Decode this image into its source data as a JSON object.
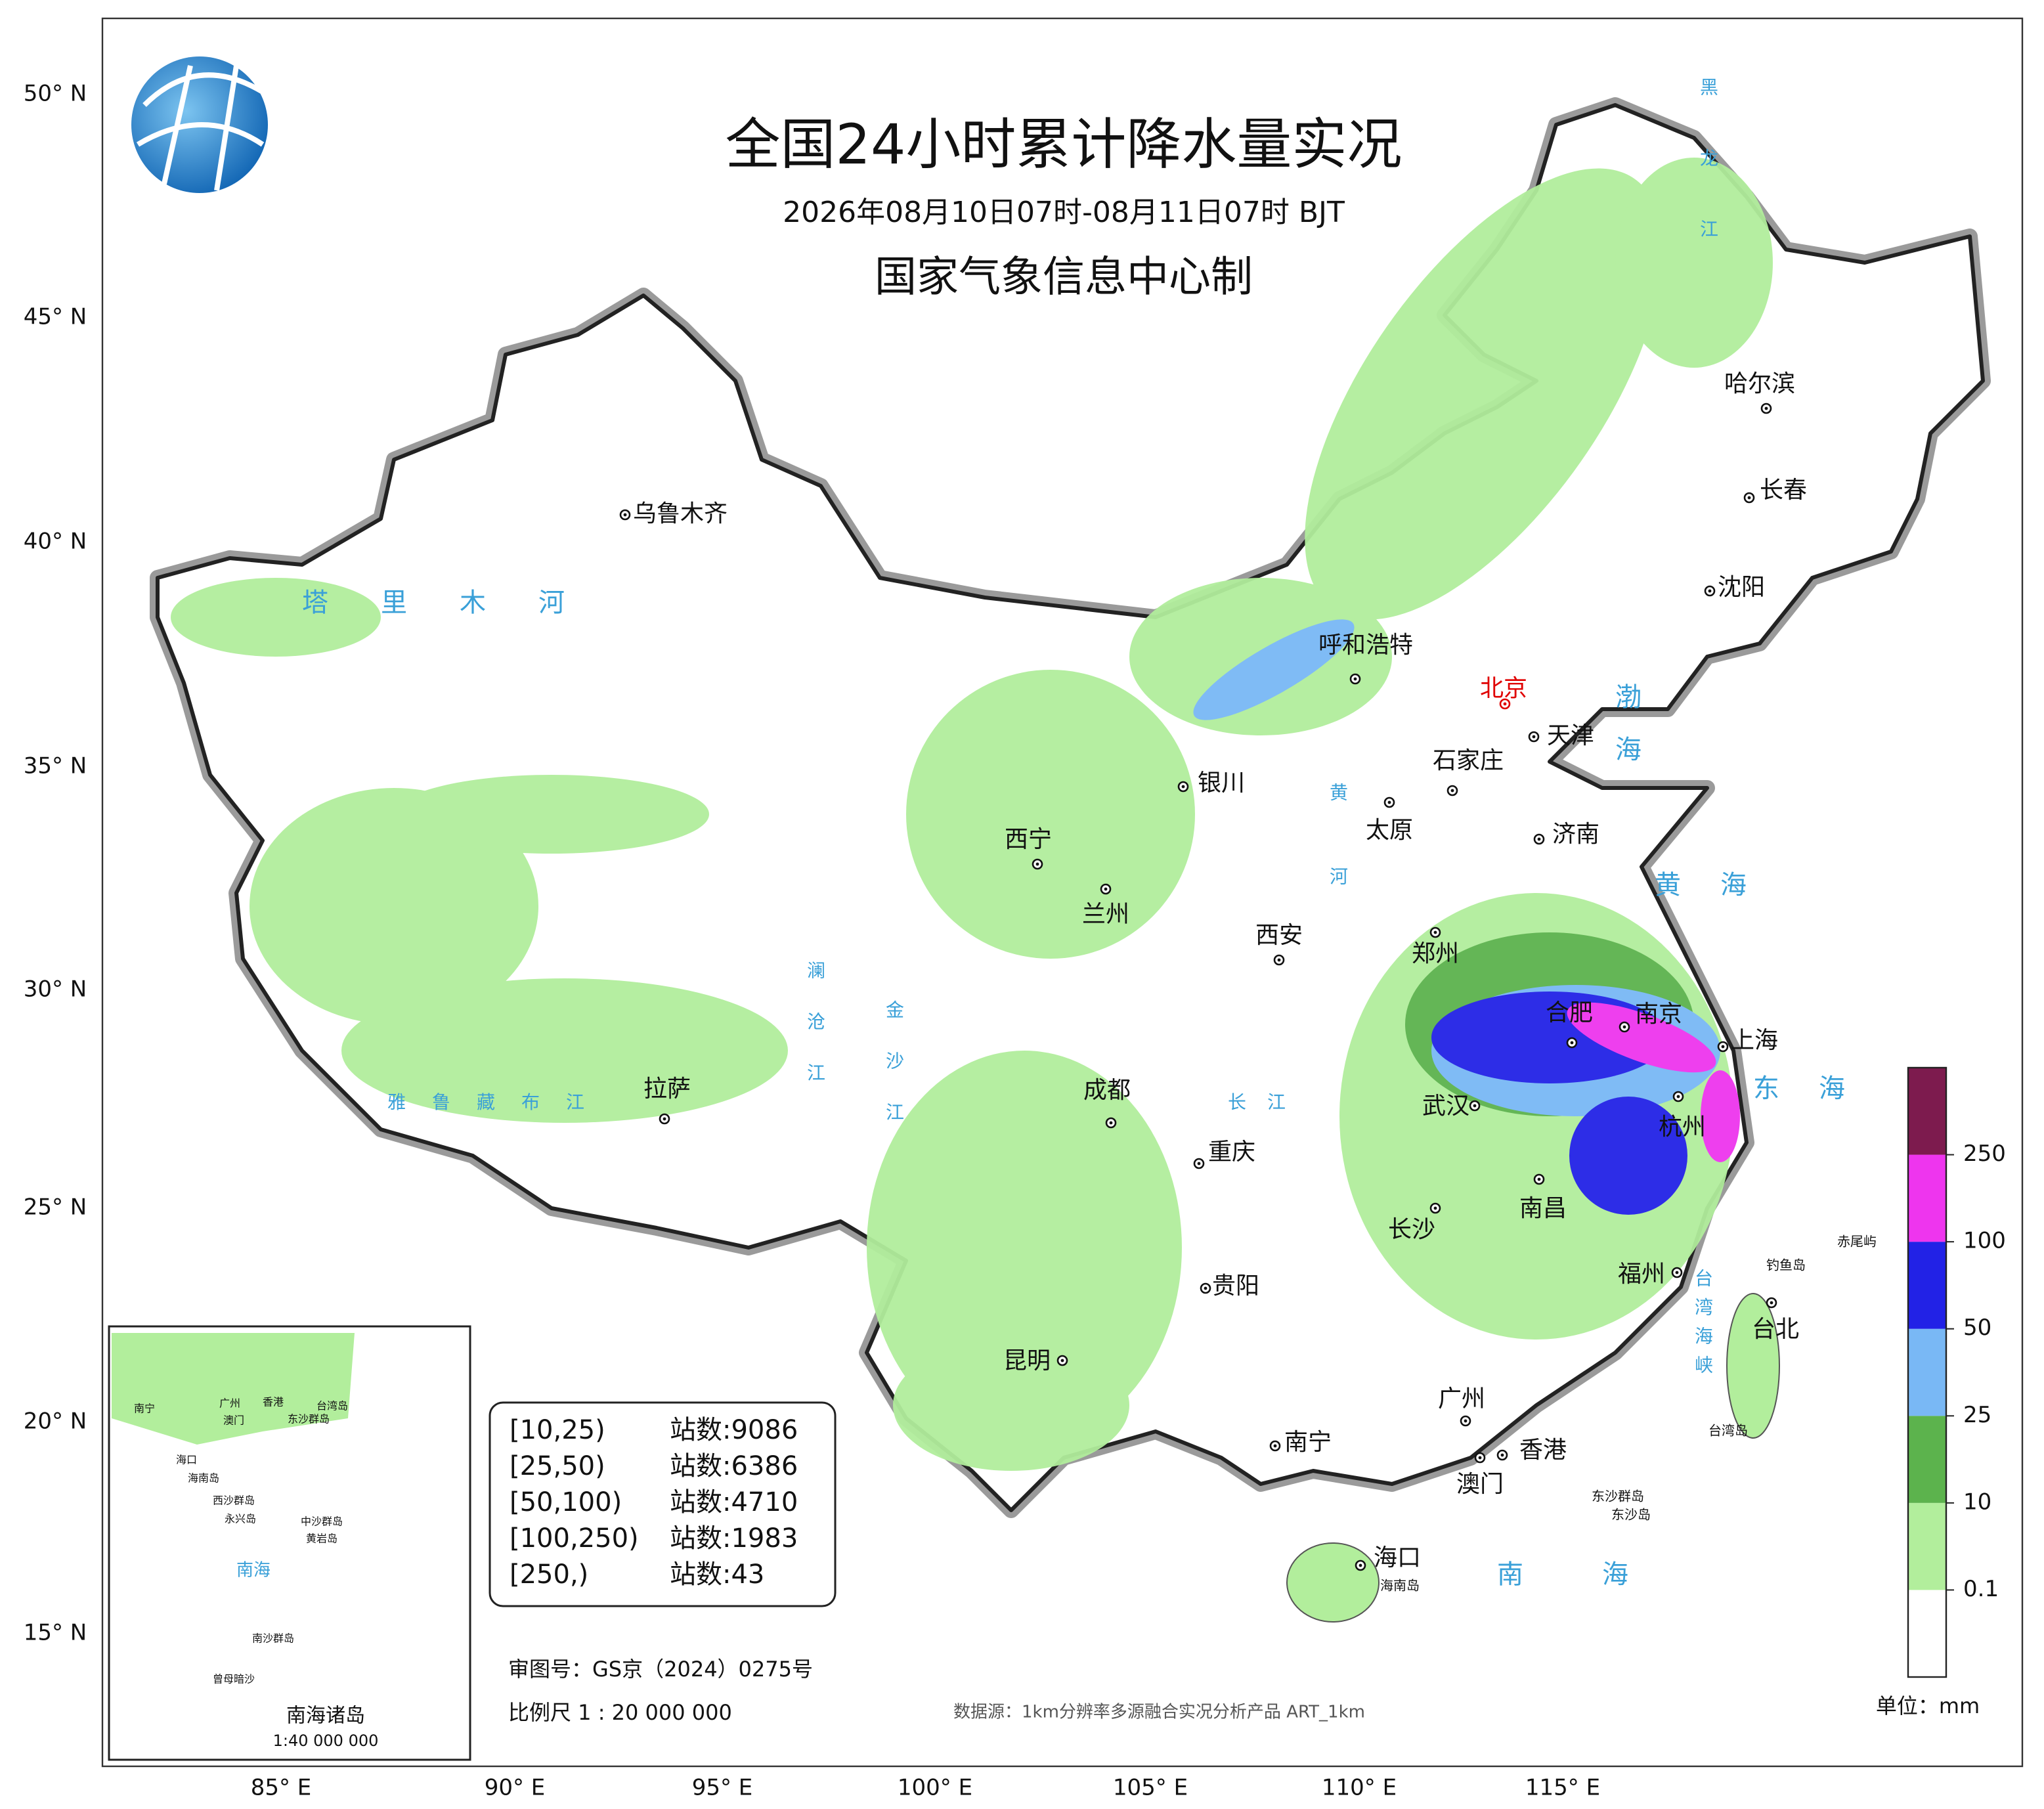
{
  "title": "全国24小时累计降水量实况",
  "subtitle": "2026年08月10日07时-08月11日07时 BJT",
  "producer": "国家气象信息中心制",
  "latitude_labels": [
    "50° N",
    "45° N",
    "40° N",
    "35° N",
    "30° N",
    "25° N",
    "20° N",
    "15° N"
  ],
  "longitude_labels": [
    "85° E",
    "90° E",
    "95° E",
    "100° E",
    "105° E",
    "110° E",
    "115° E"
  ],
  "cities": [
    {
      "name": "乌鲁木齐"
    },
    {
      "name": "呼和浩特"
    },
    {
      "name": "北京",
      "color": "#e00000"
    },
    {
      "name": "天津"
    },
    {
      "name": "石家庄"
    },
    {
      "name": "太原"
    },
    {
      "name": "济南"
    },
    {
      "name": "银川"
    },
    {
      "name": "西宁"
    },
    {
      "name": "兰州"
    },
    {
      "name": "西安"
    },
    {
      "name": "郑州"
    },
    {
      "name": "合肥"
    },
    {
      "name": "南京"
    },
    {
      "name": "上海"
    },
    {
      "name": "武汉"
    },
    {
      "name": "杭州"
    },
    {
      "name": "拉萨"
    },
    {
      "name": "成都"
    },
    {
      "name": "重庆"
    },
    {
      "name": "长沙"
    },
    {
      "name": "南昌"
    },
    {
      "name": "贵阳"
    },
    {
      "name": "福州"
    },
    {
      "name": "台北"
    },
    {
      "name": "昆明"
    },
    {
      "name": "南宁"
    },
    {
      "name": "广州"
    },
    {
      "name": "香港"
    },
    {
      "name": "澳门"
    },
    {
      "name": "海口"
    },
    {
      "name": "哈尔滨"
    },
    {
      "name": "长春"
    },
    {
      "name": "沈阳"
    }
  ],
  "water_labels": [
    "塔里木河",
    "渤海",
    "黄海",
    "东海",
    "南海",
    "雅鲁藏布江",
    "黄河",
    "长江",
    "黑龙江",
    "澜沧江",
    "金沙江",
    "台湾海峡"
  ],
  "island_labels": [
    "钓鱼岛",
    "赤尾屿",
    "台湾岛",
    "东沙群岛",
    "东沙岛",
    "海南岛"
  ],
  "legend": {
    "ticks": [
      0.1,
      10,
      25,
      50,
      100,
      250
    ],
    "colors": [
      "#ffffff",
      "#b2ee9c",
      "#5cb34d",
      "#79b8f5",
      "#2222e6",
      "#ee35ee",
      "#7d1b4e"
    ],
    "unit": "单位：mm"
  },
  "stats": {
    "rows": [
      {
        "range": "[10,25)",
        "label": "站数:",
        "count": 9086
      },
      {
        "range": "[25,50)",
        "label": "站数:",
        "count": 6386
      },
      {
        "range": "[50,100)",
        "label": "站数:",
        "count": 4710
      },
      {
        "range": "[100,250)",
        "label": "站数:",
        "count": 1983
      },
      {
        "range": "[250,)",
        "label": "站数:",
        "count": 43
      }
    ]
  },
  "approval": "审图号：GS京（2024）0275号",
  "scale": "比例尺 1 : 20 000 000",
  "source": "数据源：1km分辨率多源融合实况分析产品 ART_1km",
  "inset": {
    "labels": [
      "南宁",
      "广州",
      "香港",
      "澳门",
      "台湾岛",
      "东沙群岛",
      "海口",
      "海南岛",
      "西沙群岛",
      "永兴岛",
      "中沙群岛",
      "黄岩岛",
      "南海",
      "南沙群岛",
      "曾母暗沙"
    ],
    "title": "南海诸岛",
    "scale": "1:40 000 000"
  }
}
